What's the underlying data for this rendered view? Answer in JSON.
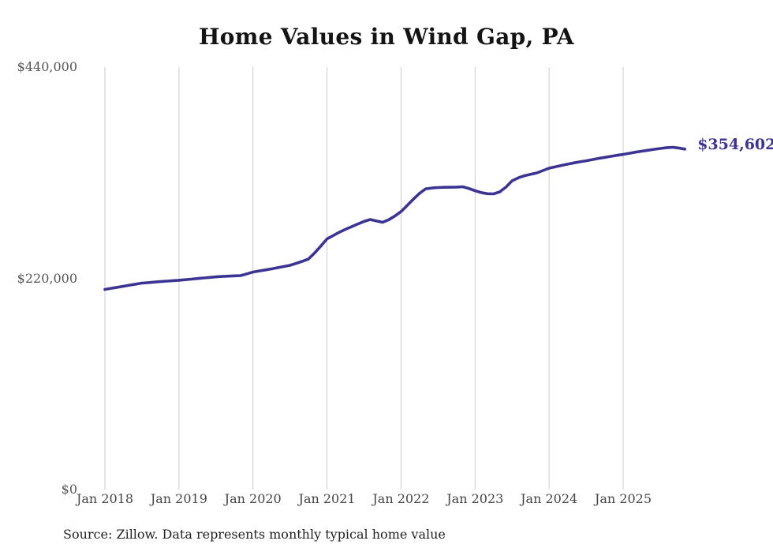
{
  "title": "Home Values in Wind Gap, PA",
  "end_label": "$354,602",
  "source_note": "Source: Zillow. Data represents monthly typical home value",
  "colors": {
    "line": "#3c3494",
    "grid": "#cbcbcb",
    "y_tick_text": "#565656",
    "x_tick_text": "#454545",
    "title_text": "#141414",
    "source_text": "#222222"
  },
  "y_axis": {
    "min": 0,
    "max": 440000,
    "ticks": [
      {
        "label": "$440,000",
        "value": 440000
      },
      {
        "label": "$220,000",
        "value": 220000
      },
      {
        "label": "$0",
        "value": 0
      }
    ]
  },
  "x_axis": {
    "tick_labels": [
      "Jan 2018",
      "Jan 2019",
      "Jan 2020",
      "Jan 2021",
      "Jan 2022",
      "Jan 2023",
      "Jan 2024",
      "Jan 2025"
    ],
    "months_per_tick": 12
  },
  "chart_data": {
    "type": "line",
    "title": "Home Values in Wind Gap, PA",
    "xlabel": "",
    "ylabel": "",
    "ylim": [
      0,
      440000
    ],
    "unit": "USD",
    "frequency": "monthly",
    "x_start": "2018-01",
    "x_end": "2025-11",
    "final_value": 354602,
    "legend": null,
    "grid": "vertical-only",
    "values": [
      208500,
      209600,
      210700,
      211800,
      212900,
      214000,
      215100,
      215600,
      216100,
      216600,
      217100,
      217600,
      218000,
      218600,
      219200,
      219800,
      220400,
      221000,
      221600,
      222000,
      222300,
      222600,
      222900,
      224700,
      226600,
      227700,
      228800,
      229900,
      231100,
      232300,
      233600,
      235600,
      237800,
      240200,
      246500,
      253700,
      261100,
      264600,
      268000,
      271100,
      273900,
      276700,
      279300,
      281300,
      279800,
      278400,
      281000,
      284900,
      289500,
      296000,
      302500,
      308600,
      313300,
      314100,
      314600,
      314800,
      314900,
      315100,
      315400,
      313600,
      311300,
      309300,
      308200,
      308000,
      310100,
      315000,
      321600,
      324700,
      326900,
      328300,
      329800,
      332300,
      334700,
      336200,
      337600,
      338900,
      340200,
      341400,
      342500,
      343700,
      344900,
      346000,
      347100,
      348100,
      349100,
      350300,
      351400,
      352400,
      353400,
      354400,
      355300,
      356000,
      356500,
      355800,
      354602
    ]
  }
}
